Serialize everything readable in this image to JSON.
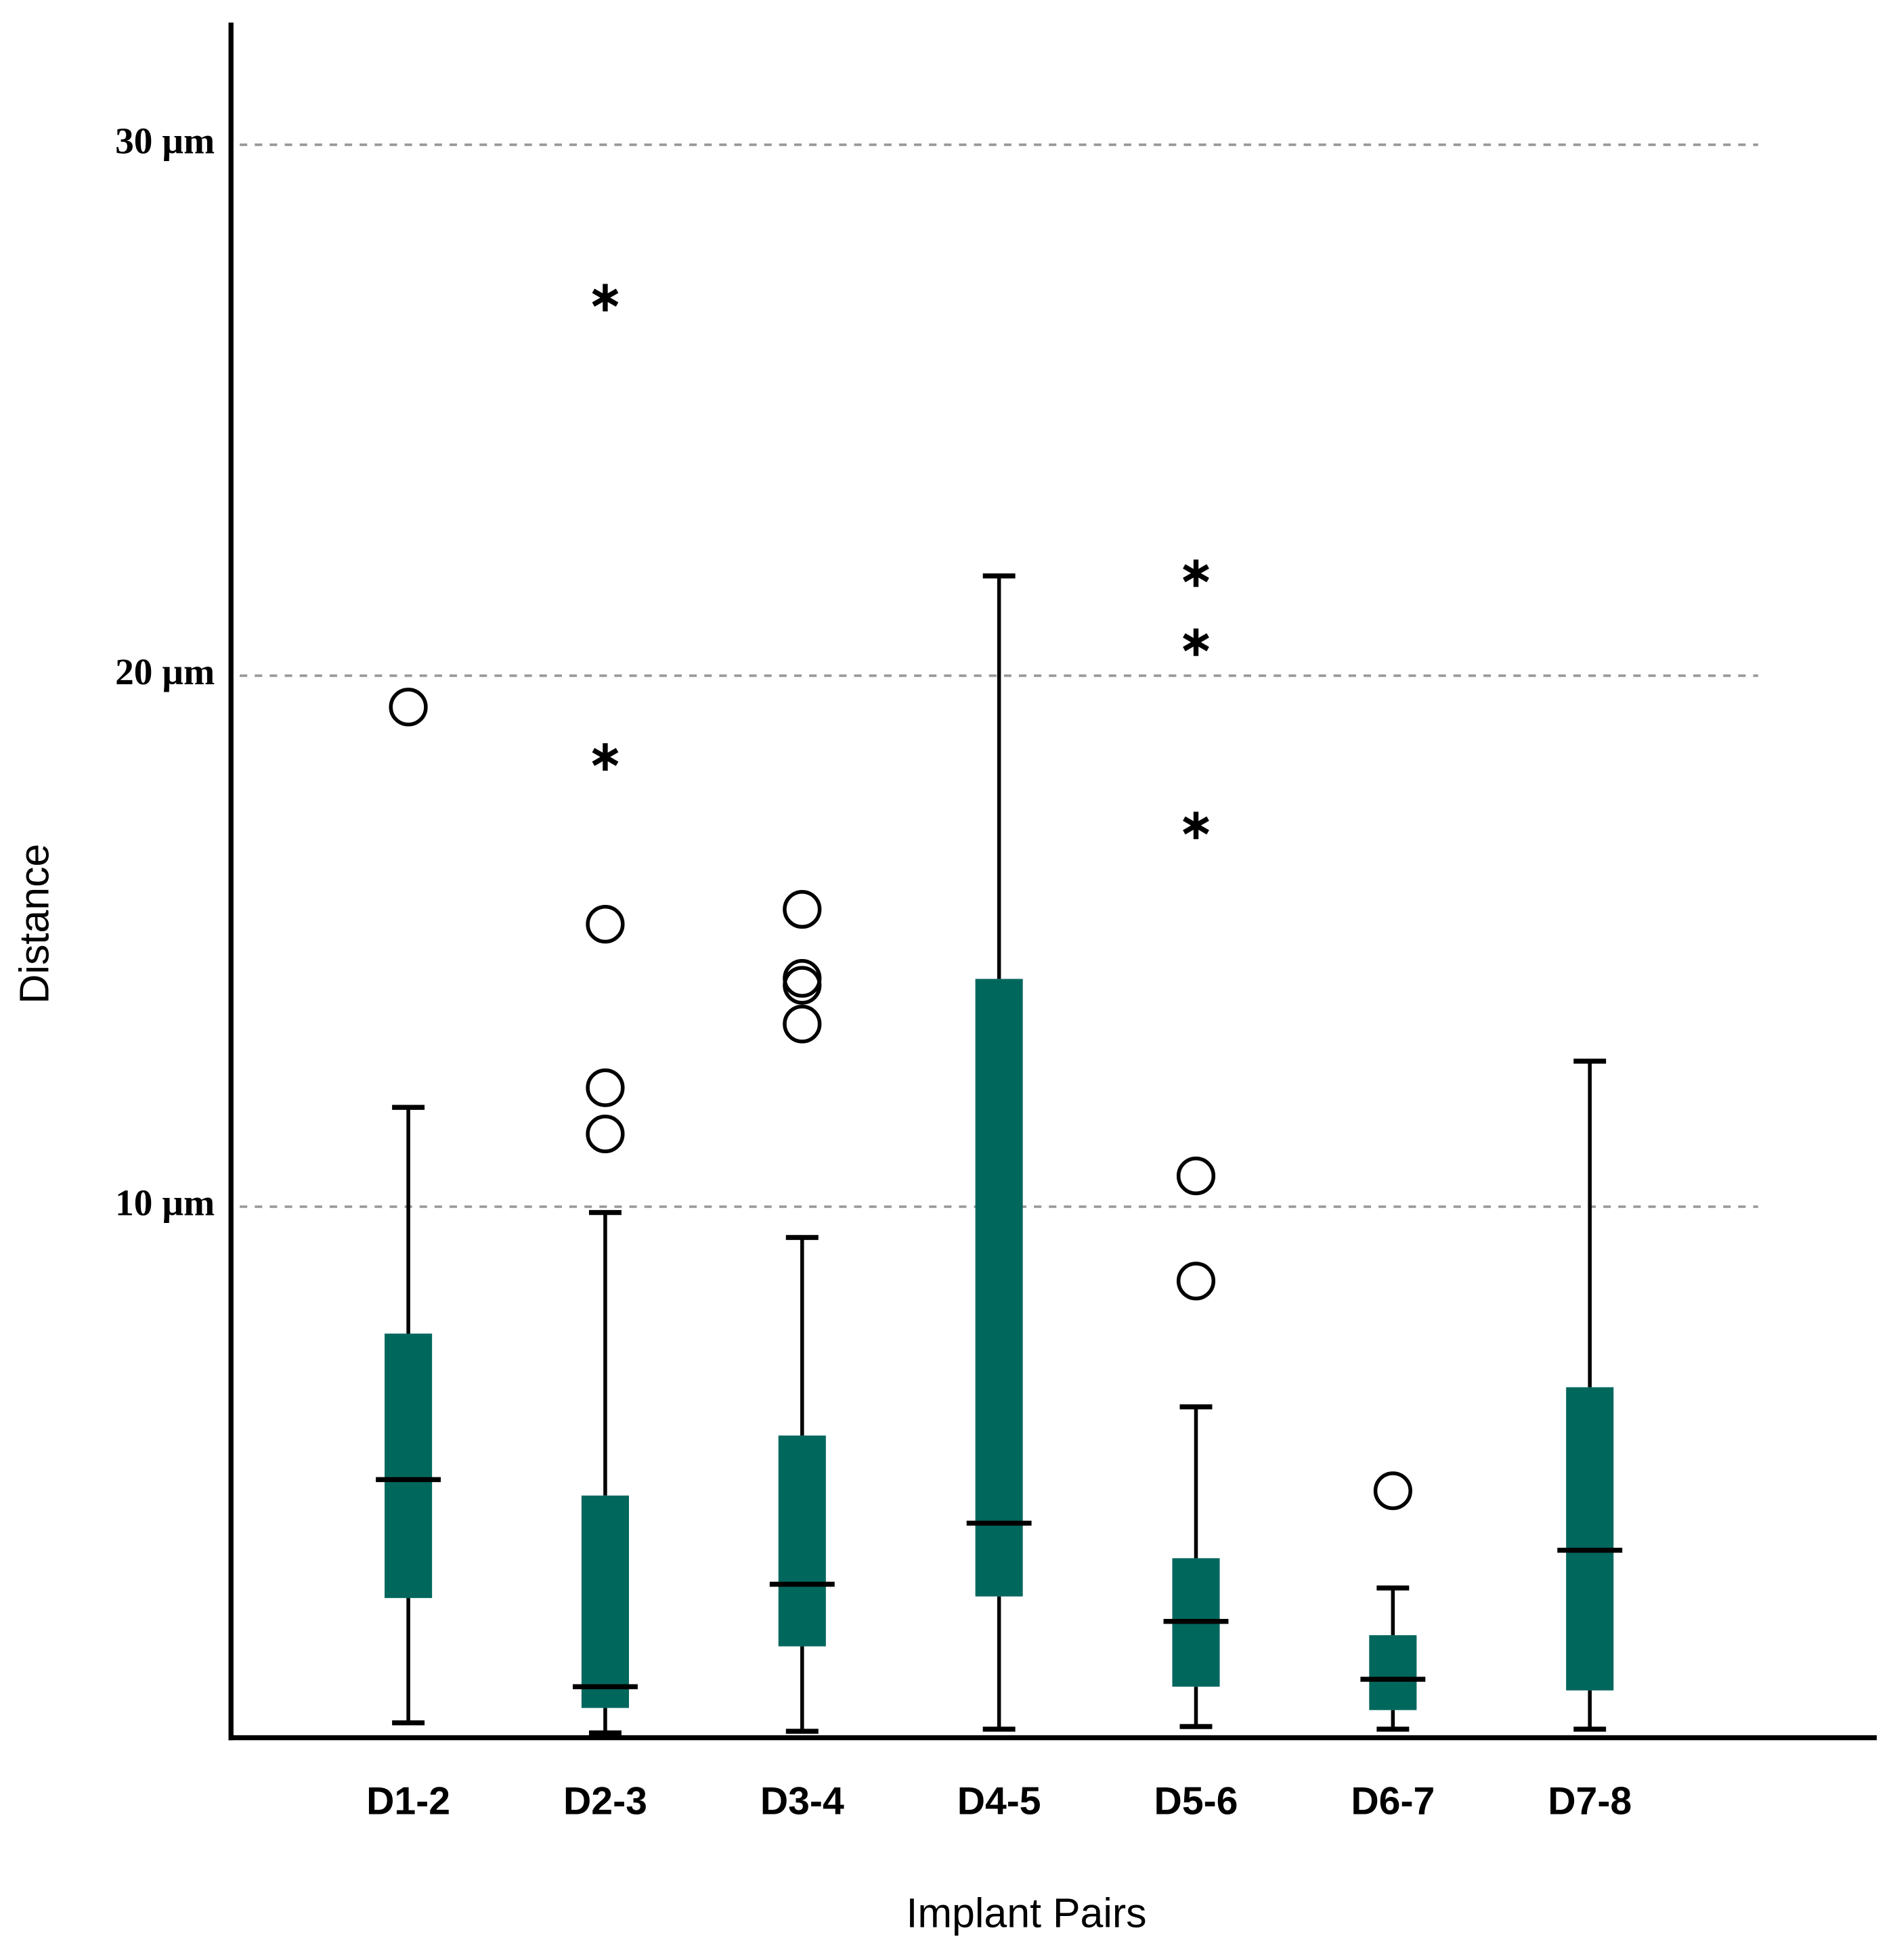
{
  "chart_data": {
    "type": "box",
    "x_label": "Implant Pairs",
    "y_label": "Distance",
    "categories": [
      "D1-2",
      "D2-3",
      "D3-4",
      "D4-5",
      "D5-6",
      "D6-7",
      "D7-8"
    ],
    "color": "#00675d",
    "ylim": [
      0,
      32.3
    ],
    "yticks": [
      {
        "value": 10,
        "label": "10 µm"
      },
      {
        "value": 20,
        "label": "20 µm"
      },
      {
        "value": 30,
        "label": "30 µm"
      }
    ],
    "grid": true,
    "boxes": [
      {
        "whisker_low": 0.28,
        "q1": 2.63,
        "median": 4.86,
        "q3": 7.61,
        "whisker_high": 11.87,
        "outliers": [
          19.41
        ],
        "extremes": []
      },
      {
        "whisker_low": 0.09,
        "q1": 0.56,
        "median": 0.96,
        "q3": 4.56,
        "whisker_high": 9.89,
        "outliers": [
          15.32,
          12.24,
          11.37
        ],
        "extremes": [
          27.12,
          18.47
        ]
      },
      {
        "whisker_low": 0.12,
        "q1": 1.72,
        "median": 2.89,
        "q3": 5.69,
        "whisker_high": 9.42,
        "outliers": [
          15.6,
          14.3,
          14.17,
          13.44
        ],
        "extremes": []
      },
      {
        "whisker_low": 0.16,
        "q1": 2.66,
        "median": 4.04,
        "q3": 14.29,
        "whisker_high": 21.88,
        "outliers": [],
        "extremes": []
      },
      {
        "whisker_low": 0.21,
        "q1": 0.96,
        "median": 2.19,
        "q3": 3.38,
        "whisker_high": 6.23,
        "outliers": [
          10.58,
          8.6
        ],
        "extremes": [
          21.93,
          20.63,
          17.18
        ]
      },
      {
        "whisker_low": 0.16,
        "q1": 0.52,
        "median": 1.1,
        "q3": 1.93,
        "whisker_high": 2.82,
        "outliers": [
          4.65
        ],
        "extremes": []
      },
      {
        "whisker_low": 0.16,
        "q1": 0.89,
        "median": 3.53,
        "q3": 6.6,
        "whisker_high": 12.74,
        "outliers": [],
        "extremes": []
      }
    ]
  }
}
